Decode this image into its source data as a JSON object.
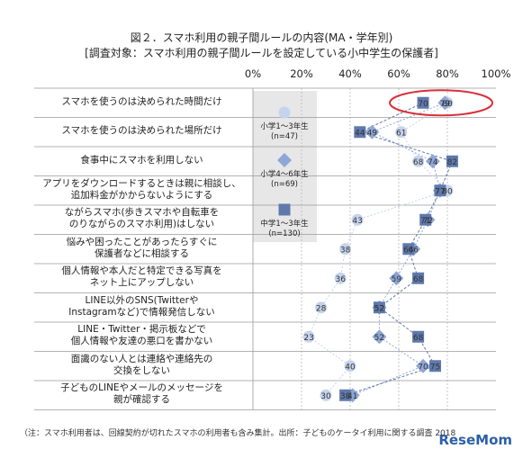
{
  "chart_data": {
    "type": "scatter",
    "title": "図２．スマホ利用の親子間ルールの内容(MA・学年別)",
    "subtitle": "[調査対象：スマホ利用の親子間ルールを設定している小中学生の保護者]",
    "x_ticks": [
      "0%",
      "20%",
      "40%",
      "60%",
      "80%",
      "100%"
    ],
    "xlim": [
      0,
      100
    ],
    "categories": [
      [
        "スマホを使うのは決められた時間だけ"
      ],
      [
        "スマホを使うのは決められた場所だけ"
      ],
      [
        "食事中にスマホを利用しない"
      ],
      [
        "アプリをダウンロードするときは親に相談し、",
        "追加料金がかからないようにする"
      ],
      [
        "ながらスマホ(歩きスマホや自転車を",
        "のりながらのスマホ利用)はしない"
      ],
      [
        "悩みや困ったことがあったらすぐに",
        "保護者などに相談する"
      ],
      [
        "個人情報や本人だと特定できる写真を",
        "ネット上にアップしない"
      ],
      [
        "LINE以外のSNS(Twitterや",
        "Instagramなど)で情報発信しない"
      ],
      [
        "LINE・Twitter・掲示板などで",
        "個人情報や友達の悪口を書かない"
      ],
      [
        "面識のない人とは連絡や連絡先の",
        "交換をしない"
      ],
      [
        "子どものLINEやメールのメッセージを",
        "親が確認する"
      ]
    ],
    "series": [
      {
        "name": [
          "小学1～3年生",
          "(n=47)"
        ],
        "marker": "circle",
        "color": "#c5d3ec",
        "values": [
          80,
          61,
          68,
          80,
          43,
          38,
          36,
          28,
          23,
          40,
          30
        ]
      },
      {
        "name": [
          "小学4～6年生",
          "(n=69)"
        ],
        "marker": "diamond",
        "color": "#8fa7d6",
        "values": [
          79,
          49,
          74,
          77,
          72,
          66,
          59,
          52,
          52,
          70,
          41
        ]
      },
      {
        "name": [
          "中学1～3年生",
          "(n=130)"
        ],
        "marker": "square",
        "color": "#5f79ad",
        "values": [
          70,
          44,
          82,
          77,
          71,
          64,
          68,
          52,
          68,
          75,
          38
        ]
      }
    ],
    "highlight": "ellipse around first row"
  },
  "footer": "（注：スマホ利用者は、回線契約が切れたスマホの利用者も含み集計。出所：子どものケータイ利用に関する調査 2018",
  "logo": "ReseMom"
}
